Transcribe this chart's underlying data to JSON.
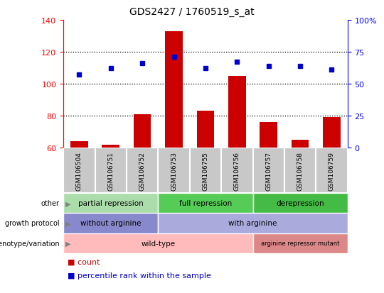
{
  "title": "GDS2427 / 1760519_s_at",
  "samples": [
    "GSM106504",
    "GSM106751",
    "GSM106752",
    "GSM106753",
    "GSM106755",
    "GSM106756",
    "GSM106757",
    "GSM106758",
    "GSM106759"
  ],
  "bar_values": [
    64,
    62,
    81,
    133,
    83,
    105,
    76,
    65,
    79
  ],
  "percentile_values": [
    106,
    110,
    113,
    117,
    110,
    114,
    111,
    111,
    109
  ],
  "ylim_left": [
    60,
    140
  ],
  "ylim_right": [
    0,
    100
  ],
  "left_yticks": [
    60,
    80,
    100,
    120,
    140
  ],
  "right_yticks": [
    0,
    25,
    50,
    75,
    100
  ],
  "right_ytick_labels": [
    "0",
    "25",
    "50",
    "75",
    "100%"
  ],
  "bar_color": "#cc0000",
  "dot_color": "#0000cc",
  "chart_bg": "#ffffff",
  "tick_bg": "#c8c8c8",
  "annotation_rows": [
    {
      "label": "other",
      "segments": [
        {
          "text": "partial repression",
          "start": 0,
          "end": 3,
          "color": "#aaddaa"
        },
        {
          "text": "full repression",
          "start": 3,
          "end": 6,
          "color": "#55cc55"
        },
        {
          "text": "derepression",
          "start": 6,
          "end": 9,
          "color": "#44bb44"
        }
      ]
    },
    {
      "label": "growth protocol",
      "segments": [
        {
          "text": "without arginine",
          "start": 0,
          "end": 3,
          "color": "#8888cc"
        },
        {
          "text": "with arginine",
          "start": 3,
          "end": 9,
          "color": "#aaaadd"
        }
      ]
    },
    {
      "label": "genotype/variation",
      "segments": [
        {
          "text": "wild-type",
          "start": 0,
          "end": 6,
          "color": "#ffbbbb"
        },
        {
          "text": "arginine repressor mutant",
          "start": 6,
          "end": 9,
          "color": "#dd8888"
        }
      ]
    }
  ],
  "legend_items": [
    {
      "label": "count",
      "color": "#cc0000"
    },
    {
      "label": "percentile rank within the sample",
      "color": "#0000cc"
    }
  ]
}
